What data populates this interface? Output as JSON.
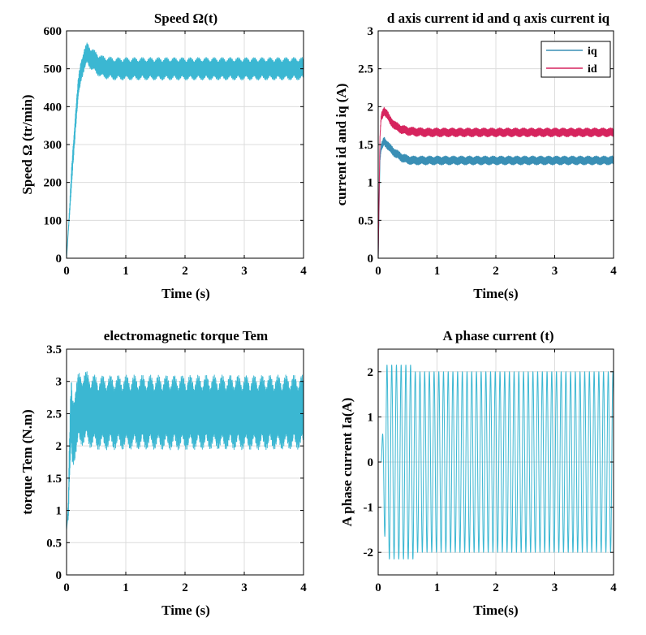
{
  "chart_data": [
    {
      "type": "line",
      "title": "Speed Ω(t)",
      "xlabel": "Time (s)",
      "ylabel": "Speed Ω (tr/min)",
      "xlim": [
        0,
        4
      ],
      "ylim": [
        0,
        600
      ],
      "xticks": [
        0,
        1,
        2,
        3,
        4
      ],
      "yticks": [
        0,
        100,
        200,
        300,
        400,
        500,
        600
      ],
      "grid": true,
      "series": [
        {
          "name": "speed",
          "color": "#3bb7d2",
          "x": [
            0,
            0.05,
            0.1,
            0.15,
            0.2,
            0.25,
            0.3,
            0.35,
            0.4,
            0.5,
            0.6,
            0.8,
            1.0,
            1.5,
            2.0,
            2.5,
            3.0,
            3.5,
            4.0
          ],
          "y": [
            0,
            120,
            250,
            360,
            450,
            500,
            525,
            540,
            530,
            515,
            505,
            500,
            500,
            500,
            500,
            500,
            500,
            500,
            500
          ],
          "ripple_amplitude": 30
        }
      ]
    },
    {
      "type": "line",
      "title": "d axis current id and q axis current iq",
      "xlabel": "Time(s)",
      "ylabel": "current id and iq (A)",
      "xlim": [
        0,
        4
      ],
      "ylim": [
        0,
        3
      ],
      "xticks": [
        0,
        1,
        2,
        3,
        4
      ],
      "yticks": [
        0,
        0.5,
        1,
        1.5,
        2,
        2.5,
        3
      ],
      "grid": true,
      "legend": "top-right",
      "series": [
        {
          "name": "iq",
          "color": "#3a8fb5",
          "x": [
            0,
            0.03,
            0.05,
            0.1,
            0.15,
            0.2,
            0.3,
            0.4,
            0.5,
            0.6,
            0.8,
            1.0,
            2.0,
            3.0,
            4.0
          ],
          "y": [
            0,
            1.3,
            1.45,
            1.55,
            1.5,
            1.45,
            1.38,
            1.33,
            1.3,
            1.29,
            1.29,
            1.29,
            1.29,
            1.29,
            1.29
          ],
          "ripple_amplitude": 0.06
        },
        {
          "name": "id",
          "color": "#d6245e",
          "x": [
            0,
            0.03,
            0.05,
            0.1,
            0.15,
            0.2,
            0.3,
            0.4,
            0.5,
            0.6,
            0.8,
            1.0,
            2.0,
            3.0,
            4.0
          ],
          "y": [
            0,
            1.6,
            1.85,
            1.95,
            1.9,
            1.82,
            1.74,
            1.7,
            1.68,
            1.67,
            1.66,
            1.66,
            1.66,
            1.66,
            1.66
          ],
          "ripple_amplitude": 0.06
        }
      ]
    },
    {
      "type": "line",
      "title": "electromagnetic torque Tem",
      "xlabel": "Time (s)",
      "ylabel": "torque Tem (N.m)",
      "xlim": [
        0,
        4
      ],
      "ylim": [
        0,
        3.5
      ],
      "xticks": [
        0,
        1,
        2,
        3,
        4
      ],
      "yticks": [
        0,
        0.5,
        1,
        1.5,
        2,
        2.5,
        3,
        3.5
      ],
      "grid": true,
      "series": [
        {
          "name": "torque",
          "color": "#3bb7d2",
          "x": [
            0,
            0.03,
            0.05,
            0.08,
            0.1,
            0.15,
            0.2,
            0.3,
            0.4,
            0.5,
            0.6,
            0.8,
            1.0,
            2.0,
            3.0,
            4.0
          ],
          "y": [
            0.7,
            1.0,
            1.8,
            2.5,
            2.2,
            2.4,
            2.55,
            2.6,
            2.55,
            2.52,
            2.52,
            2.52,
            2.52,
            2.52,
            2.52,
            2.52
          ],
          "ripple_amplitude": 0.58
        }
      ]
    },
    {
      "type": "line",
      "title": "A phase current (t)",
      "xlabel": "Time(s)",
      "ylabel": "A phase current Ia(A)",
      "xlim": [
        0,
        4
      ],
      "ylim": [
        -2.5,
        2.5
      ],
      "xticks": [
        0,
        1,
        2,
        3,
        4
      ],
      "yticks": [
        -2,
        -1,
        0,
        1,
        2
      ],
      "grid": true,
      "series": [
        {
          "name": "Ia",
          "color": "#3bb7d2",
          "amplitude": 2.0,
          "startup_peak": 2.15,
          "frequency_hz": 12.5
        }
      ]
    }
  ]
}
